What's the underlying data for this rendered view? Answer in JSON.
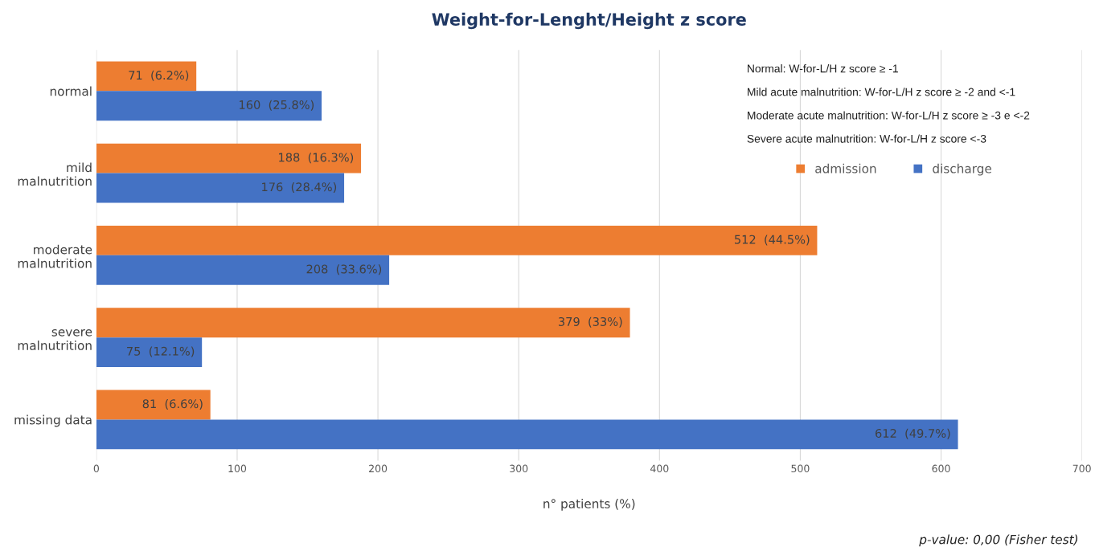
{
  "chart_data": {
    "type": "bar",
    "orientation": "horizontal",
    "title": "Weight-for-Lenght/Height z score",
    "xlabel": "n° patients (%)",
    "categories": [
      "normal",
      "mild\nmalnutrition",
      "moderate\nmalnutrition",
      "severe\nmalnutrition",
      "missing data"
    ],
    "series": [
      {
        "name": "admission",
        "color": "#ed7d31",
        "values": [
          71,
          188,
          512,
          379,
          81
        ],
        "value_labels": [
          "71  (6.2%)",
          "188  (16.3%)",
          "512  (44.5%)",
          "379  (33%)",
          "81  (6.6%)"
        ]
      },
      {
        "name": "discharge",
        "color": "#4472c4",
        "values": [
          160,
          176,
          208,
          75,
          612
        ],
        "value_labels": [
          "160  (25.8%)",
          "176  (28.4%)",
          "208  (33.6%)",
          "75  (12.1%)",
          "612  (49.7%)"
        ]
      }
    ],
    "xlim": [
      0,
      700
    ],
    "xticks": [
      0,
      100,
      200,
      300,
      400,
      500,
      600,
      700
    ],
    "grid": "x",
    "legend": "top right",
    "annotations": [
      "Normal: W-for-L/H z score ≥ -1",
      "Mild acute malnutrition: W-for-L/H z score ≥ -2 and <-1",
      "Moderate acute malnutrition: W-for-L/H z score ≥ -3 e <-2",
      "Severe acute malnutrition: W-for-L/H z score <-3",
      "p-value: 0,00 (Fisher test)"
    ]
  }
}
